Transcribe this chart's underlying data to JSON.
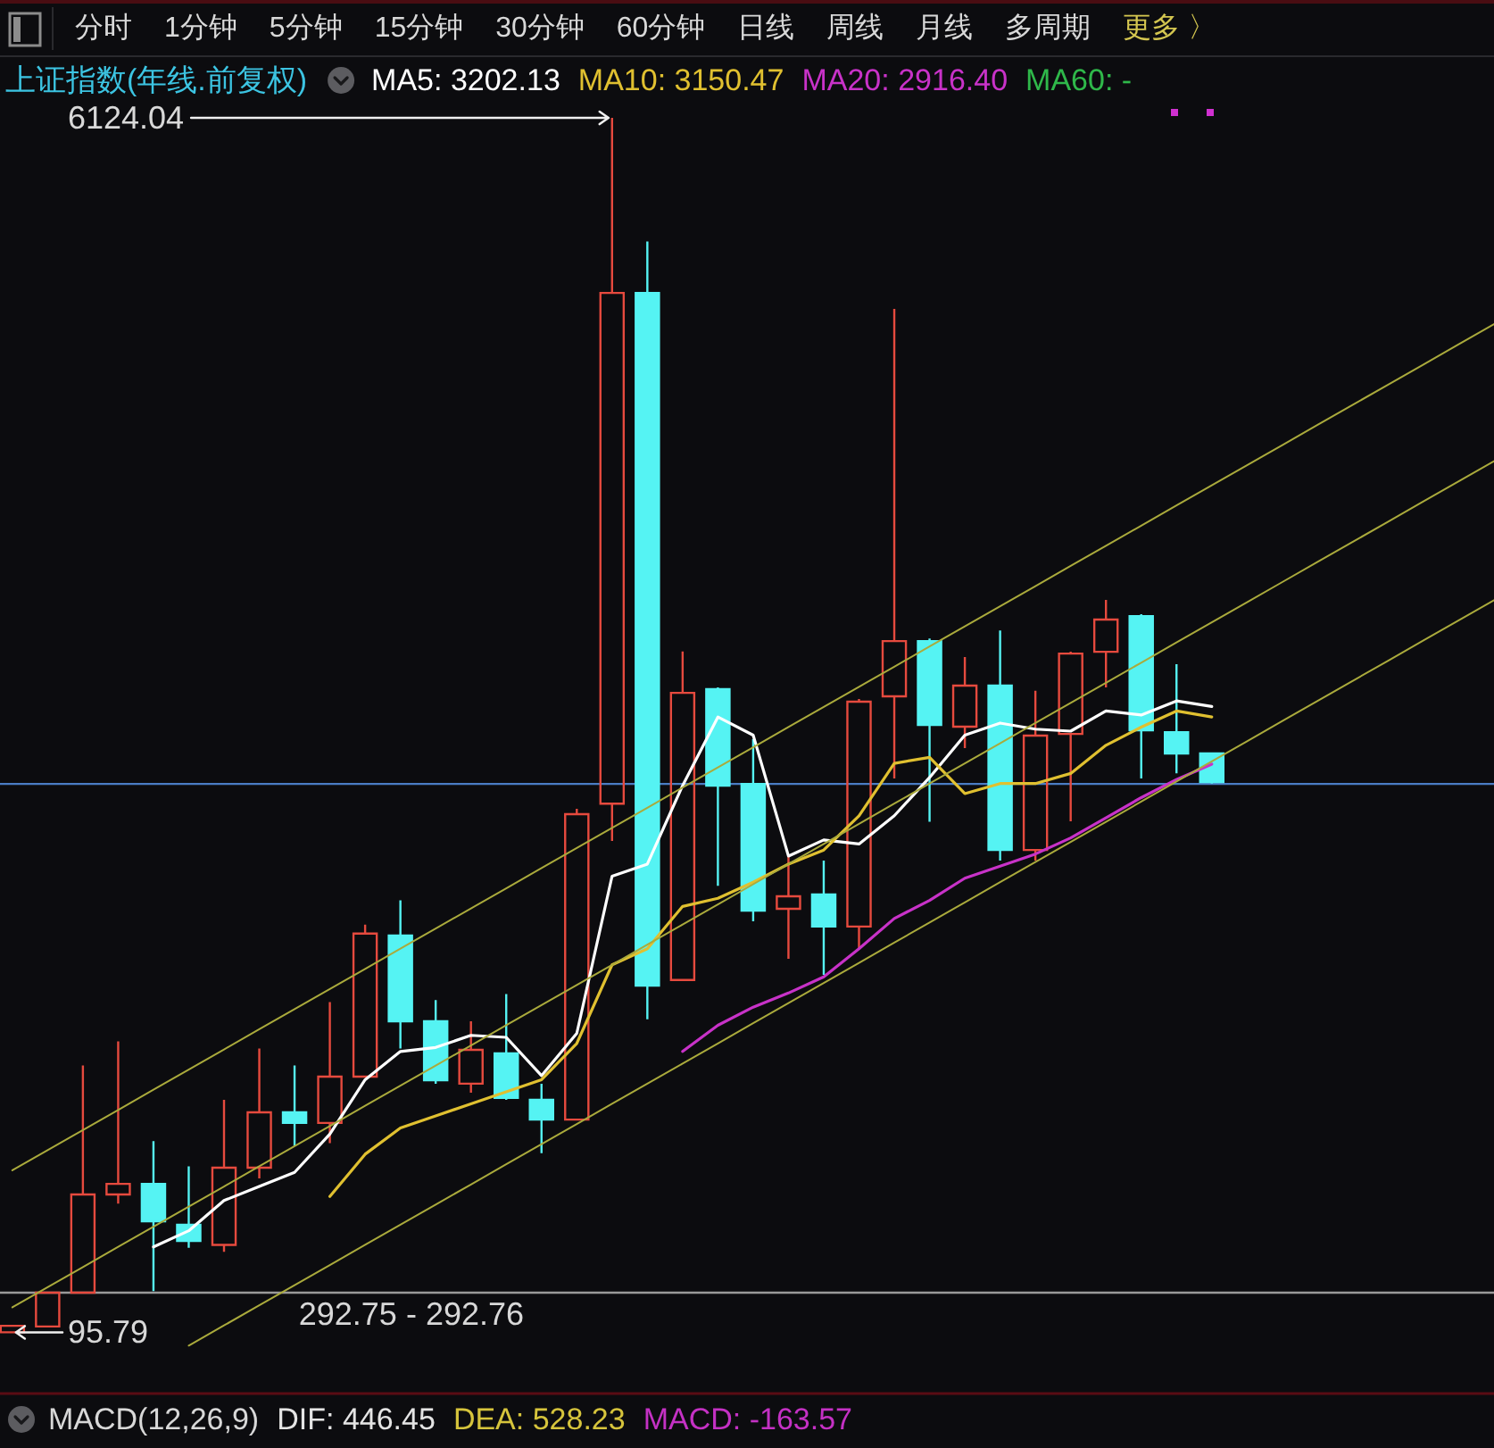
{
  "chart_data": [
    {
      "type": "candlestick",
      "title": "上证指数(年线.前复权)",
      "legend": "top left",
      "tick_labels": "y",
      "categories": [
        null,
        null,
        null,
        null,
        null,
        null,
        null,
        null,
        null,
        null,
        null,
        null,
        null,
        null,
        null,
        null,
        null,
        null,
        null,
        null,
        null,
        null,
        null,
        null,
        null,
        null,
        null,
        null,
        null,
        null,
        null,
        null,
        null,
        null,
        null,
        null,
        null,
        null,
        null,
        null,
        null,
        null,
        null
      ],
      "ohlc": [
        [
          96,
          128,
          95.79,
          128
        ],
        [
          125,
          292.75,
          120,
          292.75
        ],
        [
          293,
          1420,
          292.76,
          780
        ],
        [
          780,
          1540,
          735,
          833
        ],
        [
          833,
          1045,
          300,
          647
        ],
        [
          630,
          920,
          515,
          550
        ],
        [
          530,
          1250,
          495,
          913
        ],
        [
          913,
          1505,
          860,
          1188
        ],
        [
          1188,
          1420,
          1020,
          1135
        ],
        [
          1135,
          1735,
          1035,
          1365
        ],
        [
          1365,
          2120,
          1360,
          2075
        ],
        [
          2065,
          2240,
          1505,
          1640
        ],
        [
          1640,
          1745,
          1330,
          1347
        ],
        [
          1330,
          1640,
          1285,
          1498
        ],
        [
          1480,
          1775,
          1250,
          1260
        ],
        [
          1250,
          1330,
          985,
          1152
        ],
        [
          1152,
          2695,
          1150,
          2668
        ],
        [
          2720,
          6124.04,
          2535,
          5255
        ],
        [
          5255,
          5510,
          1650,
          1817
        ],
        [
          1845,
          3475,
          1840,
          3270
        ],
        [
          3288,
          3297,
          2312,
          2809
        ],
        [
          2818,
          3040,
          2136,
          2189
        ],
        [
          2198,
          2455,
          1950,
          2260
        ],
        [
          2269,
          2437,
          1870,
          2110
        ],
        [
          2110,
          3240,
          1995,
          3226
        ],
        [
          3253,
          5176,
          2845,
          3527
        ],
        [
          3527,
          3540,
          2630,
          3111
        ],
        [
          3102,
          3448,
          2996,
          3306
        ],
        [
          3306,
          3580,
          2437,
          2490
        ],
        [
          2490,
          3280,
          2437,
          3058
        ],
        [
          3066,
          3474,
          2632,
          3465
        ],
        [
          3474,
          3731,
          3297,
          3634
        ],
        [
          3651,
          3660,
          2845,
          3084
        ],
        [
          3075,
          3412,
          2871,
          2969
        ],
        [
          2969,
          2975,
          2820,
          2827
        ],
        null,
        null,
        null,
        null,
        null,
        null,
        null,
        null
      ],
      "ylim": [
        -208,
        6430
      ],
      "yticks": [
        95.79,
        6124.04
      ],
      "series": [
        {
          "type": "line",
          "name": "MA5: 3202.13",
          "color": "#ffffff",
          "values": [
            null,
            null,
            null,
            null,
            520,
            600,
            750,
            820,
            890,
            1080,
            1350,
            1490,
            1510,
            1570,
            1560,
            1370,
            1580,
            2360,
            2420,
            2810,
            3150,
            3060,
            2460,
            2540,
            2520,
            2660,
            2850,
            3060,
            3120,
            3090,
            3080,
            3180,
            3160,
            3230,
            3202.13,
            null,
            null,
            null,
            null,
            null,
            null,
            null,
            null
          ]
        },
        {
          "type": "line",
          "name": "MA10: 3150.47",
          "color": "#e0c030",
          "values": [
            null,
            null,
            null,
            null,
            null,
            null,
            null,
            null,
            null,
            770,
            980,
            1110,
            1170,
            1230,
            1290,
            1350,
            1530,
            1920,
            2000,
            2210,
            2250,
            2330,
            2420,
            2490,
            2660,
            2920,
            2950,
            2770,
            2820,
            2820,
            2870,
            3010,
            3100,
            3180,
            3150.47,
            null,
            null,
            null,
            null,
            null,
            null,
            null,
            null
          ]
        },
        {
          "type": "line",
          "name": "MA20: 2916.40",
          "color": "#c832c8",
          "values": [
            null,
            null,
            null,
            null,
            null,
            null,
            null,
            null,
            null,
            null,
            null,
            null,
            null,
            null,
            null,
            null,
            null,
            null,
            null,
            1490,
            1620,
            1710,
            1780,
            1860,
            2000,
            2150,
            2240,
            2350,
            2410,
            2470,
            2550,
            2650,
            2750,
            2840,
            2916.4,
            null,
            null,
            null,
            null,
            null,
            null,
            null,
            null
          ]
        },
        {
          "type": "line",
          "name": "MA60: -",
          "color": "#2fb84a",
          "values": [
            null,
            null,
            null,
            null,
            null,
            null,
            null,
            null,
            null,
            null,
            null,
            null,
            null,
            null,
            null,
            null,
            null,
            null,
            null,
            null,
            null,
            null,
            null,
            null,
            null,
            null,
            null,
            null,
            null,
            null,
            null,
            null,
            null,
            null,
            null,
            null,
            null,
            null,
            null,
            null,
            null,
            null,
            null
          ]
        },
        {
          "type": "line",
          "color": "#aaaa3c",
          "values": [
            900,
            1000,
            1100,
            1200,
            1300,
            1400,
            1500,
            1600,
            1700,
            1800,
            1900,
            2000,
            2100,
            2200,
            2300,
            2400,
            2500,
            2600,
            2700,
            2800,
            2900,
            3000,
            3100,
            3200,
            3300,
            3400,
            3500,
            3600,
            3700,
            3800,
            3900,
            4000,
            4100,
            4200,
            4300,
            4400,
            4500,
            4600,
            4700,
            4800,
            4900,
            5000,
            5100
          ]
        },
        {
          "type": "line",
          "color": "#aaaa3c",
          "values": [
            220,
            320,
            420,
            520,
            620,
            720,
            820,
            920,
            1020,
            1120,
            1220,
            1320,
            1420,
            1520,
            1620,
            1720,
            1820,
            1920,
            2020,
            2120,
            2220,
            2320,
            2420,
            2520,
            2620,
            2720,
            2820,
            2920,
            3020,
            3120,
            3220,
            3320,
            3420,
            3520,
            3620,
            3720,
            3820,
            3920,
            4020,
            4120,
            4220,
            4320,
            4420
          ]
        },
        {
          "type": "line",
          "color": "#aaaa3c",
          "values": [
            null,
            null,
            null,
            null,
            null,
            30,
            130,
            230,
            330,
            430,
            530,
            630,
            730,
            830,
            930,
            1030,
            1130,
            1230,
            1330,
            1430,
            1530,
            1630,
            1730,
            1830,
            1930,
            2030,
            2130,
            2230,
            2330,
            2430,
            2530,
            2630,
            2730,
            2830,
            2930,
            3030,
            3130,
            3230,
            3330,
            3430,
            3530,
            3630,
            3730
          ]
        }
      ],
      "ref_lines": [
        {
          "axis": "y",
          "value": 292.75,
          "label": "292.75 - 292.76",
          "color": "#9a9a9a"
        },
        {
          "axis": "y",
          "value": 2818,
          "color": "#4a7cc4"
        }
      ],
      "annotations": [
        "分时",
        "1分钟",
        "5分钟",
        "15分钟",
        "30分钟",
        "60分钟",
        "日线",
        "周线",
        "月线",
        "多周期",
        "更多 〉"
      ]
    },
    {
      "type": "other",
      "title": "MACD(12,26,9)",
      "annotations": [
        "DIF: 446.45",
        "DEA: 528.23",
        "MACD: -163.57"
      ]
    }
  ]
}
